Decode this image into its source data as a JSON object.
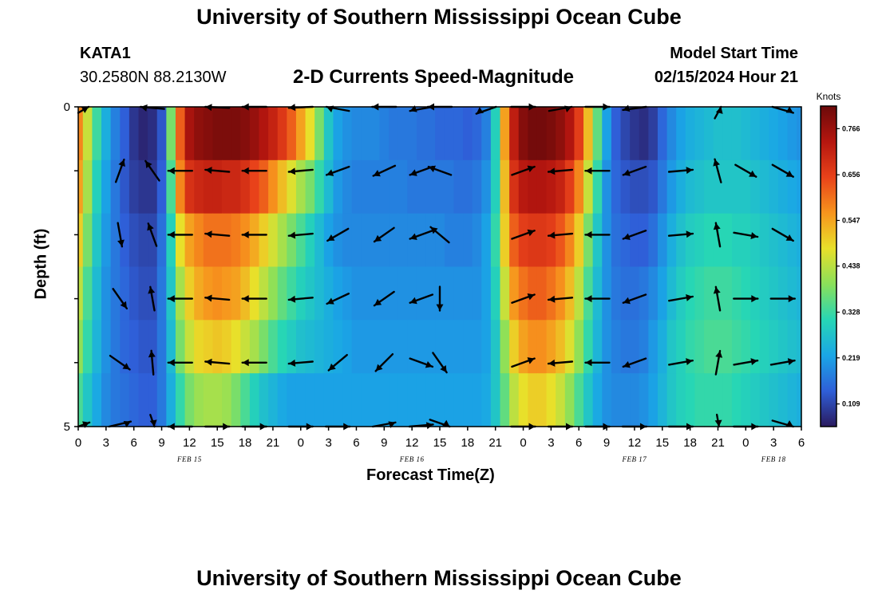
{
  "page": {
    "title": "University of Southern Mississippi Ocean Cube",
    "station_name": "KATA1",
    "station_coords": "30.2580N  88.2130W",
    "model_label": "Model Start Time",
    "model_time": "02/15/2024 Hour 21",
    "footer_title": "University of Southern Mississippi Ocean Cube"
  },
  "chart_data": {
    "type": "heatmap",
    "title": "2-D Currents Speed-Magnitude",
    "xlabel": "Forecast Time(Z)",
    "ylabel": "Depth (ft)",
    "x_tick_labels": [
      "0",
      "3",
      "6",
      "9",
      "12",
      "15",
      "18",
      "21",
      "0",
      "3",
      "6",
      "9",
      "12",
      "15",
      "18",
      "21",
      "0",
      "3",
      "6",
      "9",
      "12",
      "15",
      "18",
      "21",
      "0",
      "3",
      "6"
    ],
    "x_range_hours": [
      0,
      78
    ],
    "date_labels": [
      {
        "text": "FEB 15",
        "hour": 12
      },
      {
        "text": "FEB 16",
        "hour": 36
      },
      {
        "text": "FEB 17",
        "hour": 60
      },
      {
        "text": "FEB 18",
        "hour": 75
      }
    ],
    "y_tick_labels": [
      "0",
      "5"
    ],
    "y_range": [
      0,
      5
    ],
    "depth_layers": 5,
    "colorbar": {
      "title": "Knots",
      "tick_labels": [
        "0.766",
        "0.656",
        "0.547",
        "0.438",
        "0.328",
        "0.219",
        "0.109"
      ],
      "tick_values": [
        0.766,
        0.656,
        0.547,
        0.438,
        0.328,
        0.219,
        0.109
      ],
      "range": [
        0.055,
        0.82
      ],
      "colors": [
        "#2a1a5e",
        "#2f5fd8",
        "#1aa6e6",
        "#27d6b5",
        "#8ae05a",
        "#e8e02a",
        "#f7941d",
        "#e8421a",
        "#b5160f",
        "#6b0a0a"
      ]
    },
    "time_hours": [
      0,
      1,
      2,
      3,
      4,
      5,
      6,
      7,
      8,
      9,
      10,
      11,
      12,
      13,
      14,
      15,
      16,
      17,
      18,
      19,
      20,
      21,
      22,
      23,
      24,
      25,
      26,
      27,
      28,
      29,
      30,
      31,
      32,
      33,
      34,
      35,
      36,
      37,
      38,
      39,
      40,
      41,
      42,
      43,
      44,
      45,
      46,
      47,
      48,
      49,
      50,
      51,
      52,
      53,
      54,
      55,
      56,
      57,
      58,
      59,
      60,
      61,
      62,
      63,
      64,
      65,
      66,
      67,
      68,
      69,
      70,
      71,
      72,
      73,
      74,
      75,
      76,
      77,
      78
    ],
    "speed_knots": [
      [
        0.58,
        0.45,
        0.33,
        0.24,
        0.18,
        0.14,
        0.09,
        0.07,
        0.08,
        0.13,
        0.38,
        0.62,
        0.75,
        0.78,
        0.79,
        0.8,
        0.8,
        0.8,
        0.79,
        0.77,
        0.74,
        0.71,
        0.67,
        0.62,
        0.55,
        0.48,
        0.38,
        0.28,
        0.22,
        0.2,
        0.19,
        0.19,
        0.19,
        0.18,
        0.17,
        0.17,
        0.17,
        0.16,
        0.16,
        0.15,
        0.15,
        0.15,
        0.14,
        0.15,
        0.18,
        0.3,
        0.55,
        0.72,
        0.79,
        0.81,
        0.81,
        0.8,
        0.78,
        0.74,
        0.66,
        0.52,
        0.36,
        0.22,
        0.14,
        0.11,
        0.09,
        0.08,
        0.1,
        0.15,
        0.19,
        0.22,
        0.24,
        0.25,
        0.26,
        0.27,
        0.27,
        0.27,
        0.26,
        0.25,
        0.24,
        0.23,
        0.22,
        0.21,
        0.2
      ],
      [
        0.55,
        0.42,
        0.3,
        0.22,
        0.17,
        0.13,
        0.1,
        0.09,
        0.09,
        0.14,
        0.34,
        0.58,
        0.68,
        0.7,
        0.71,
        0.71,
        0.7,
        0.7,
        0.68,
        0.65,
        0.62,
        0.57,
        0.52,
        0.47,
        0.42,
        0.38,
        0.32,
        0.26,
        0.21,
        0.19,
        0.18,
        0.18,
        0.18,
        0.18,
        0.18,
        0.18,
        0.17,
        0.17,
        0.17,
        0.17,
        0.17,
        0.16,
        0.16,
        0.17,
        0.2,
        0.3,
        0.52,
        0.68,
        0.73,
        0.74,
        0.74,
        0.73,
        0.71,
        0.66,
        0.58,
        0.45,
        0.32,
        0.2,
        0.15,
        0.13,
        0.12,
        0.12,
        0.13,
        0.17,
        0.21,
        0.24,
        0.26,
        0.27,
        0.28,
        0.28,
        0.28,
        0.28,
        0.28,
        0.27,
        0.26,
        0.25,
        0.24,
        0.23,
        0.22
      ],
      [
        0.5,
        0.38,
        0.28,
        0.21,
        0.17,
        0.14,
        0.12,
        0.11,
        0.11,
        0.16,
        0.3,
        0.48,
        0.55,
        0.58,
        0.6,
        0.6,
        0.6,
        0.59,
        0.57,
        0.54,
        0.5,
        0.46,
        0.42,
        0.38,
        0.34,
        0.3,
        0.26,
        0.22,
        0.2,
        0.19,
        0.19,
        0.19,
        0.19,
        0.19,
        0.19,
        0.19,
        0.19,
        0.19,
        0.19,
        0.19,
        0.18,
        0.18,
        0.18,
        0.19,
        0.22,
        0.32,
        0.5,
        0.62,
        0.66,
        0.67,
        0.67,
        0.66,
        0.63,
        0.58,
        0.5,
        0.38,
        0.28,
        0.2,
        0.16,
        0.15,
        0.14,
        0.14,
        0.16,
        0.2,
        0.24,
        0.27,
        0.29,
        0.3,
        0.31,
        0.31,
        0.31,
        0.3,
        0.3,
        0.29,
        0.28,
        0.27,
        0.26,
        0.25,
        0.24
      ],
      [
        0.44,
        0.34,
        0.26,
        0.2,
        0.17,
        0.15,
        0.13,
        0.12,
        0.12,
        0.17,
        0.28,
        0.42,
        0.5,
        0.54,
        0.56,
        0.57,
        0.56,
        0.55,
        0.52,
        0.48,
        0.44,
        0.4,
        0.36,
        0.33,
        0.3,
        0.28,
        0.26,
        0.24,
        0.22,
        0.21,
        0.2,
        0.2,
        0.2,
        0.2,
        0.2,
        0.2,
        0.2,
        0.2,
        0.2,
        0.2,
        0.2,
        0.2,
        0.2,
        0.2,
        0.22,
        0.3,
        0.45,
        0.56,
        0.6,
        0.62,
        0.62,
        0.6,
        0.57,
        0.52,
        0.44,
        0.34,
        0.26,
        0.2,
        0.17,
        0.16,
        0.16,
        0.17,
        0.19,
        0.22,
        0.26,
        0.29,
        0.31,
        0.32,
        0.33,
        0.33,
        0.33,
        0.32,
        0.31,
        0.3,
        0.29,
        0.28,
        0.27,
        0.26,
        0.25
      ],
      [
        0.4,
        0.32,
        0.25,
        0.2,
        0.17,
        0.15,
        0.14,
        0.13,
        0.13,
        0.17,
        0.26,
        0.38,
        0.45,
        0.49,
        0.5,
        0.51,
        0.5,
        0.48,
        0.45,
        0.42,
        0.38,
        0.34,
        0.31,
        0.29,
        0.27,
        0.26,
        0.25,
        0.24,
        0.23,
        0.22,
        0.21,
        0.21,
        0.21,
        0.21,
        0.21,
        0.21,
        0.21,
        0.21,
        0.21,
        0.21,
        0.21,
        0.21,
        0.21,
        0.21,
        0.22,
        0.28,
        0.4,
        0.5,
        0.55,
        0.57,
        0.57,
        0.55,
        0.52,
        0.47,
        0.4,
        0.32,
        0.25,
        0.2,
        0.18,
        0.17,
        0.17,
        0.18,
        0.21,
        0.24,
        0.28,
        0.3,
        0.32,
        0.33,
        0.34,
        0.34,
        0.34,
        0.33,
        0.32,
        0.31,
        0.3,
        0.29,
        0.28,
        0.27,
        0.26
      ],
      [
        0.34,
        0.28,
        0.23,
        0.19,
        0.17,
        0.16,
        0.15,
        0.14,
        0.14,
        0.17,
        0.24,
        0.32,
        0.38,
        0.41,
        0.42,
        0.42,
        0.41,
        0.38,
        0.34,
        0.3,
        0.27,
        0.25,
        0.23,
        0.22,
        0.22,
        0.22,
        0.22,
        0.22,
        0.22,
        0.22,
        0.22,
        0.22,
        0.22,
        0.22,
        0.22,
        0.22,
        0.22,
        0.22,
        0.22,
        0.22,
        0.22,
        0.22,
        0.22,
        0.22,
        0.23,
        0.28,
        0.36,
        0.44,
        0.48,
        0.5,
        0.5,
        0.48,
        0.45,
        0.4,
        0.34,
        0.28,
        0.23,
        0.2,
        0.19,
        0.19,
        0.19,
        0.2,
        0.22,
        0.25,
        0.28,
        0.3,
        0.31,
        0.32,
        0.32,
        0.32,
        0.32,
        0.31,
        0.3,
        0.29,
        0.28,
        0.27,
        0.26,
        0.25,
        0.24
      ]
    ],
    "vector_columns": [
      0,
      4.5,
      8,
      11,
      15,
      19,
      24,
      28,
      33,
      37,
      39,
      44,
      48,
      52,
      56,
      60,
      65,
      69,
      72,
      76
    ],
    "vectors_deg": [
      [
        30,
        null,
        170,
        null,
        175,
        180,
        185,
        160,
        180,
        200,
        180,
        215,
        0,
        20,
        0,
        195,
        null,
        75,
        null,
        330
      ],
      [
        null,
        70,
        125,
        180,
        175,
        180,
        185,
        200,
        205,
        200,
        160,
        null,
        20,
        185,
        180,
        200,
        5,
        105,
        330,
        330
      ],
      [
        null,
        280,
        110,
        180,
        175,
        180,
        185,
        210,
        215,
        200,
        140,
        null,
        20,
        185,
        180,
        200,
        5,
        100,
        350,
        330
      ],
      [
        null,
        305,
        100,
        180,
        175,
        180,
        185,
        205,
        215,
        200,
        270,
        null,
        20,
        185,
        180,
        200,
        10,
        100,
        0,
        0
      ],
      [
        null,
        325,
        95,
        180,
        175,
        180,
        185,
        220,
        225,
        340,
        305,
        null,
        20,
        185,
        180,
        200,
        10,
        80,
        10,
        10
      ],
      [
        20,
        25,
        280,
        180,
        0,
        0,
        0,
        0,
        20,
        10,
        325,
        null,
        0,
        0,
        0,
        0,
        0,
        275,
        0,
        330
      ]
    ]
  }
}
